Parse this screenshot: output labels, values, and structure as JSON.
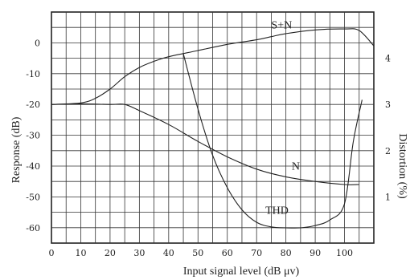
{
  "chart_data": {
    "type": "line",
    "title": "",
    "xlabel": "Input signal level (dB μv)",
    "ylabel": "Response (dB)",
    "y2label": "Distortion (%)",
    "xlim": [
      0,
      110
    ],
    "ylim": [
      -65,
      10
    ],
    "y2lim": [
      0,
      5
    ],
    "grid": true,
    "x_ticks": [
      "0",
      "10",
      "20",
      "30",
      "40",
      "50",
      "60",
      "70",
      "80",
      "90",
      "100"
    ],
    "y_ticks": [
      "0",
      "-10",
      "-20",
      "-30",
      "-40",
      "-50",
      "-60"
    ],
    "y2_ticks": [
      "1",
      "2",
      "3",
      "4"
    ],
    "series": [
      {
        "name": "S+N",
        "axis": "left",
        "x": [
          0,
          10,
          15,
          20,
          25,
          30,
          35,
          40,
          50,
          60,
          70,
          75,
          80,
          90,
          100,
          105,
          110
        ],
        "y": [
          -20,
          -19.5,
          -18,
          -15,
          -11,
          -8,
          -6,
          -4.5,
          -2.5,
          -0.5,
          1,
          2,
          3,
          4.2,
          4.5,
          4,
          -1
        ]
      },
      {
        "name": "N",
        "axis": "left",
        "x": [
          0,
          10,
          20,
          25,
          30,
          40,
          50,
          60,
          70,
          80,
          90,
          100,
          105
        ],
        "y": [
          -20,
          -19.8,
          -20,
          -20,
          -22,
          -26.5,
          -32,
          -37,
          -41,
          -43.5,
          -45,
          -46,
          -46
        ]
      },
      {
        "name": "THD",
        "axis": "right",
        "x": [
          45,
          50,
          55,
          60,
          65,
          70,
          75,
          80,
          85,
          90,
          95,
          100,
          103,
          106
        ],
        "y": [
          4.1,
          2.9,
          1.9,
          1.2,
          0.72,
          0.45,
          0.35,
          0.33,
          0.33,
          0.38,
          0.5,
          0.85,
          2.2,
          3.1
        ]
      }
    ]
  }
}
